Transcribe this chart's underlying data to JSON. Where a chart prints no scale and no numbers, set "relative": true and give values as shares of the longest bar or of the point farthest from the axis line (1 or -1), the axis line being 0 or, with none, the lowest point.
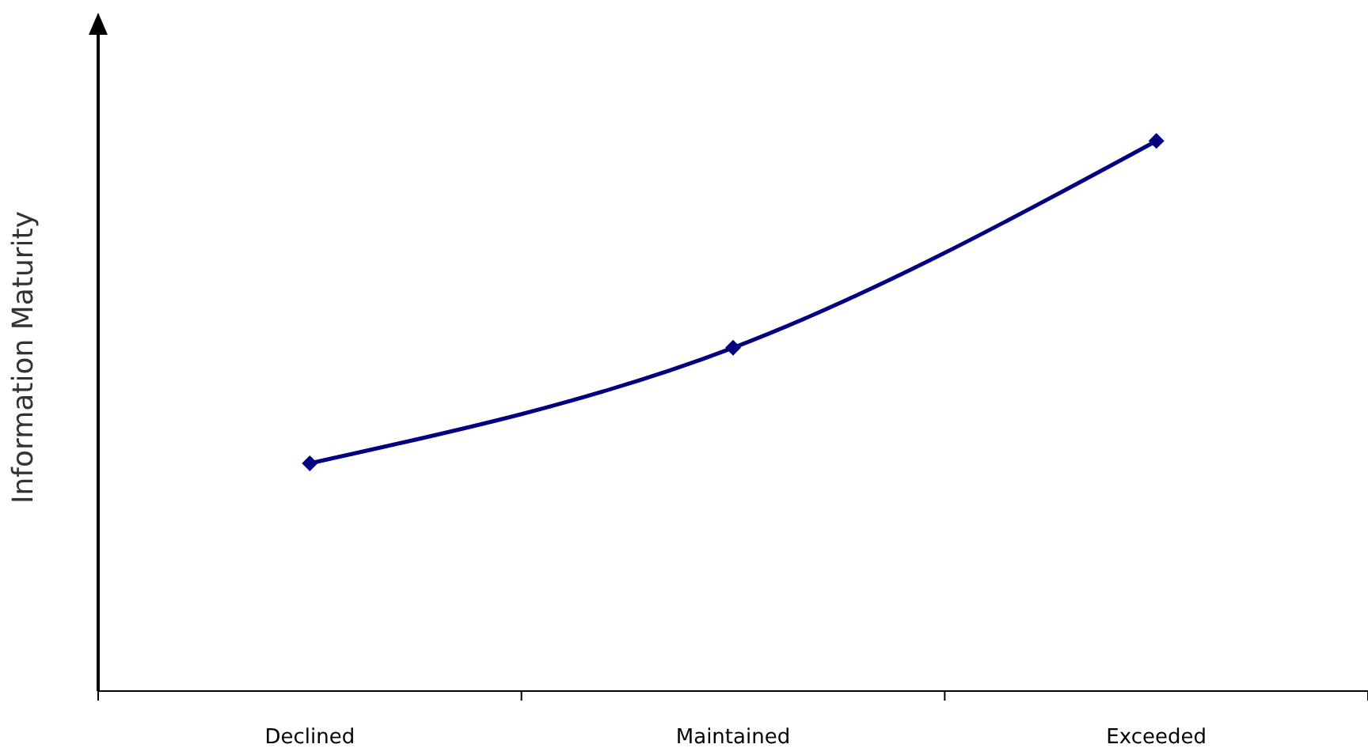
{
  "chart_data": {
    "type": "line",
    "ylabel": "Information Maturity",
    "categories": [
      "Declined",
      "Maintained",
      "Exceeded"
    ],
    "relative": true,
    "series": [
      {
        "color": "#000080",
        "values": [
          0.414,
          0.624,
          1
        ]
      }
    ],
    "marker": "diamond",
    "line_style": "solid",
    "grid": false
  }
}
